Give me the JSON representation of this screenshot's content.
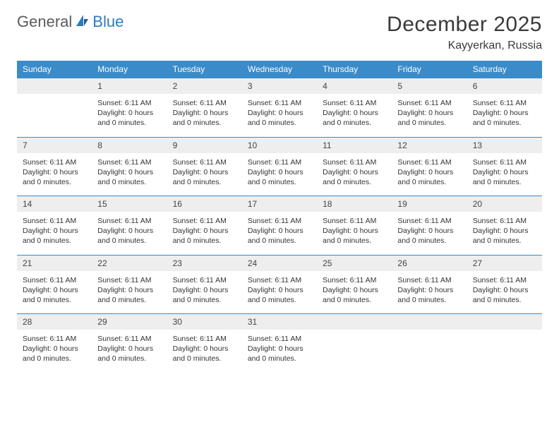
{
  "logo": {
    "text1": "General",
    "text2": "Blue"
  },
  "title": "December 2025",
  "location": "Kayyerkan, Russia",
  "colors": {
    "header_bg": "#3b8bc8",
    "header_text": "#ffffff",
    "daynum_bg": "#eeeeee",
    "row_divider": "#3b8bc8",
    "logo_gray": "#5a5a5a",
    "logo_blue": "#2b7bbf"
  },
  "day_headers": [
    "Sunday",
    "Monday",
    "Tuesday",
    "Wednesday",
    "Thursday",
    "Friday",
    "Saturday"
  ],
  "cell_text": {
    "sunset": "Sunset: 6:11 AM",
    "daylight": "Daylight: 0 hours and 0 minutes."
  },
  "weeks": [
    {
      "nums": [
        "",
        "1",
        "2",
        "3",
        "4",
        "5",
        "6"
      ],
      "filled": [
        false,
        true,
        true,
        true,
        true,
        true,
        true
      ]
    },
    {
      "nums": [
        "7",
        "8",
        "9",
        "10",
        "11",
        "12",
        "13"
      ],
      "filled": [
        true,
        true,
        true,
        true,
        true,
        true,
        true
      ]
    },
    {
      "nums": [
        "14",
        "15",
        "16",
        "17",
        "18",
        "19",
        "20"
      ],
      "filled": [
        true,
        true,
        true,
        true,
        true,
        true,
        true
      ]
    },
    {
      "nums": [
        "21",
        "22",
        "23",
        "24",
        "25",
        "26",
        "27"
      ],
      "filled": [
        true,
        true,
        true,
        true,
        true,
        true,
        true
      ]
    },
    {
      "nums": [
        "28",
        "29",
        "30",
        "31",
        "",
        "",
        ""
      ],
      "filled": [
        true,
        true,
        true,
        true,
        false,
        false,
        false
      ]
    }
  ]
}
